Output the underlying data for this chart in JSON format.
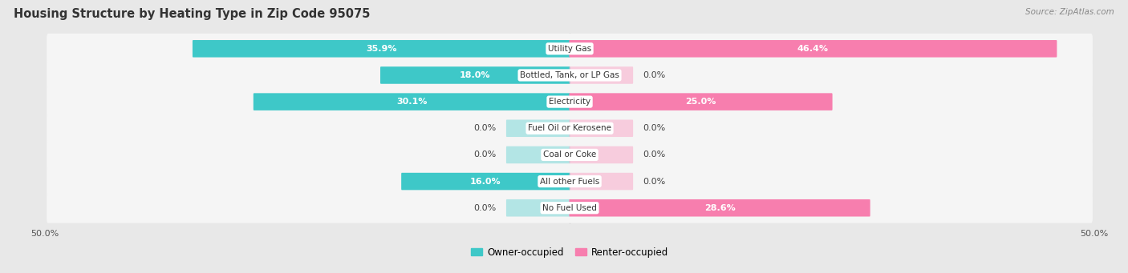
{
  "title": "Housing Structure by Heating Type in Zip Code 95075",
  "source": "Source: ZipAtlas.com",
  "categories": [
    "Utility Gas",
    "Bottled, Tank, or LP Gas",
    "Electricity",
    "Fuel Oil or Kerosene",
    "Coal or Coke",
    "All other Fuels",
    "No Fuel Used"
  ],
  "owner_values": [
    35.9,
    18.0,
    30.1,
    0.0,
    0.0,
    16.0,
    0.0
  ],
  "renter_values": [
    46.4,
    0.0,
    25.0,
    0.0,
    0.0,
    0.0,
    28.6
  ],
  "owner_color": "#3EC8C8",
  "renter_color": "#F77EAE",
  "owner_color_light": "#7DD8D8",
  "renter_color_light": "#F9ABCA",
  "owner_label": "Owner-occupied",
  "renter_label": "Renter-occupied",
  "axis_min": -50.0,
  "axis_max": 50.0,
  "background_color": "#e8e8e8",
  "row_bg_color": "#f5f5f5",
  "title_fontsize": 10.5,
  "label_fontsize": 8,
  "tick_fontsize": 8,
  "source_fontsize": 7.5,
  "cat_fontsize": 7.5
}
